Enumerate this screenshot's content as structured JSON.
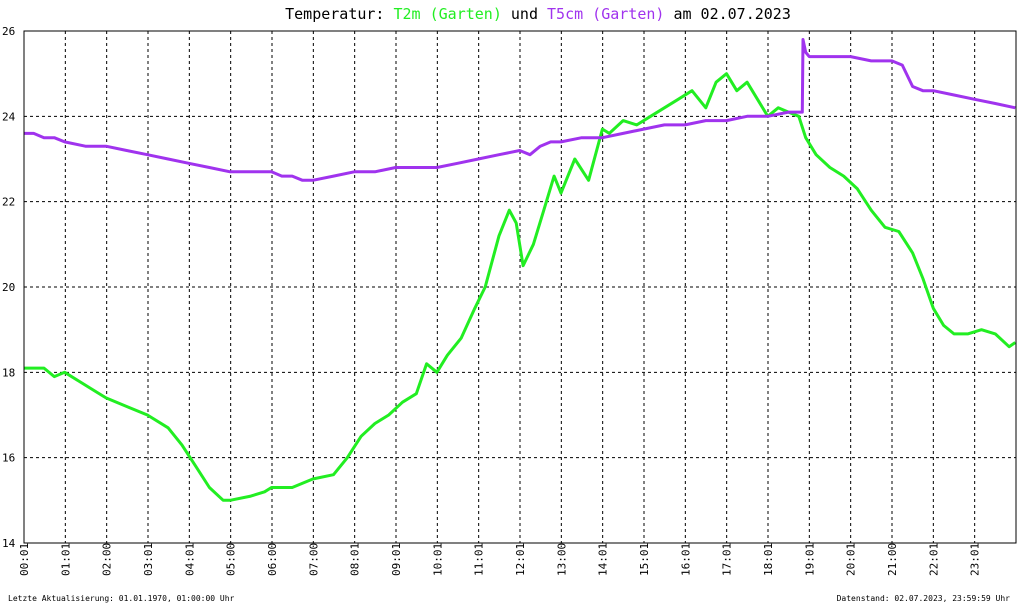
{
  "chart_data": {
    "type": "line",
    "title_parts": [
      {
        "text": "Temperatur: ",
        "color": "#000000"
      },
      {
        "text": "T2m (Garten)",
        "color": "#22ee22"
      },
      {
        "text": " und ",
        "color": "#000000"
      },
      {
        "text": "T5cm (Garten)",
        "color": "#a033ee"
      },
      {
        "text": " am 02.07.2023",
        "color": "#000000"
      }
    ],
    "xlabel": "",
    "ylabel": "",
    "ylim": [
      14,
      26
    ],
    "xlim": [
      "00:01",
      "00:00"
    ],
    "y_ticks": [
      "14",
      "16",
      "18",
      "20",
      "22",
      "24",
      "26"
    ],
    "x_ticks": [
      "00:01",
      "01:01",
      "02:00",
      "03:01",
      "04:01",
      "05:00",
      "06:00",
      "07:00",
      "08:01",
      "09:01",
      "10:01",
      "11:01",
      "12:01",
      "13:00",
      "14:01",
      "15:01",
      "16:01",
      "17:01",
      "18:01",
      "19:01",
      "20:01",
      "21:00",
      "22:01",
      "23:01"
    ],
    "grid": true,
    "legend": "none",
    "series": [
      {
        "name": "T2m (Garten)",
        "color": "#22ee22",
        "x": [
          "00:01",
          "00:30",
          "00:45",
          "01:00",
          "01:20",
          "01:40",
          "02:00",
          "02:30",
          "03:00",
          "03:30",
          "03:50",
          "04:10",
          "04:30",
          "04:50",
          "05:00",
          "05:30",
          "05:50",
          "06:00",
          "06:30",
          "07:00",
          "07:30",
          "07:50",
          "08:10",
          "08:30",
          "08:50",
          "09:10",
          "09:30",
          "09:45",
          "10:00",
          "10:15",
          "10:35",
          "10:55",
          "11:10",
          "11:20",
          "11:30",
          "11:45",
          "11:55",
          "12:05",
          "12:20",
          "12:35",
          "12:50",
          "13:00",
          "13:20",
          "13:40",
          "14:00",
          "14:10",
          "14:30",
          "14:50",
          "15:10",
          "15:30",
          "15:50",
          "16:10",
          "16:30",
          "16:45",
          "17:00",
          "17:15",
          "17:30",
          "17:45",
          "18:00",
          "18:15",
          "18:30",
          "18:45",
          "18:55",
          "19:10",
          "19:30",
          "19:50",
          "20:10",
          "20:30",
          "20:50",
          "21:10",
          "21:30",
          "21:45",
          "22:00",
          "22:15",
          "22:30",
          "22:50",
          "23:10",
          "23:30",
          "23:50",
          "23:59"
        ],
        "values": [
          18.1,
          18.1,
          17.9,
          18.0,
          17.8,
          17.6,
          17.4,
          17.2,
          17.0,
          16.7,
          16.3,
          15.8,
          15.3,
          15.0,
          15.0,
          15.1,
          15.2,
          15.3,
          15.3,
          15.5,
          15.6,
          16.0,
          16.5,
          16.8,
          17.0,
          17.3,
          17.5,
          18.2,
          18.0,
          18.4,
          18.8,
          19.5,
          20.0,
          20.6,
          21.2,
          21.8,
          21.5,
          20.5,
          21.0,
          21.8,
          22.6,
          22.2,
          23.0,
          22.5,
          23.7,
          23.6,
          23.9,
          23.8,
          24.0,
          24.2,
          24.4,
          24.6,
          24.2,
          24.8,
          25.0,
          24.6,
          24.8,
          24.4,
          24.0,
          24.2,
          24.1,
          24.0,
          23.5,
          23.1,
          22.8,
          22.6,
          22.3,
          21.8,
          21.4,
          21.3,
          20.8,
          20.2,
          19.5,
          19.1,
          18.9,
          18.9,
          19.0,
          18.9,
          18.6,
          18.7
        ]
      },
      {
        "name": "T5cm (Garten)",
        "color": "#a033ee",
        "x": [
          "00:01",
          "00:15",
          "00:30",
          "00:45",
          "01:00",
          "01:30",
          "02:00",
          "02:30",
          "03:00",
          "03:30",
          "04:00",
          "04:30",
          "05:00",
          "05:30",
          "06:00",
          "06:15",
          "06:30",
          "06:45",
          "07:00",
          "07:30",
          "08:00",
          "08:30",
          "09:00",
          "09:30",
          "10:00",
          "10:30",
          "11:00",
          "11:30",
          "12:00",
          "12:15",
          "12:30",
          "12:45",
          "13:00",
          "13:30",
          "14:00",
          "14:30",
          "15:00",
          "15:30",
          "16:00",
          "16:30",
          "17:00",
          "17:30",
          "18:00",
          "18:30",
          "18:50",
          "18:51",
          "18:55",
          "19:00",
          "19:30",
          "20:00",
          "20:30",
          "21:00",
          "21:15",
          "21:30",
          "21:45",
          "22:00",
          "22:30",
          "23:00",
          "23:30",
          "23:59"
        ],
        "values": [
          23.6,
          23.6,
          23.5,
          23.5,
          23.4,
          23.3,
          23.3,
          23.2,
          23.1,
          23.0,
          22.9,
          22.8,
          22.7,
          22.7,
          22.7,
          22.6,
          22.6,
          22.5,
          22.5,
          22.6,
          22.7,
          22.7,
          22.8,
          22.8,
          22.8,
          22.9,
          23.0,
          23.1,
          23.2,
          23.1,
          23.3,
          23.4,
          23.4,
          23.5,
          23.5,
          23.6,
          23.7,
          23.8,
          23.8,
          23.9,
          23.9,
          24.0,
          24.0,
          24.1,
          24.1,
          25.8,
          25.5,
          25.4,
          25.4,
          25.4,
          25.3,
          25.3,
          25.2,
          24.7,
          24.6,
          24.6,
          24.5,
          24.4,
          24.3,
          24.2
        ]
      }
    ],
    "footer_left": "Letzte Aktualisierung: 01.01.1970, 01:00:00 Uhr",
    "footer_right": "Datenstand: 02.07.2023, 23:59:59 Uhr"
  }
}
